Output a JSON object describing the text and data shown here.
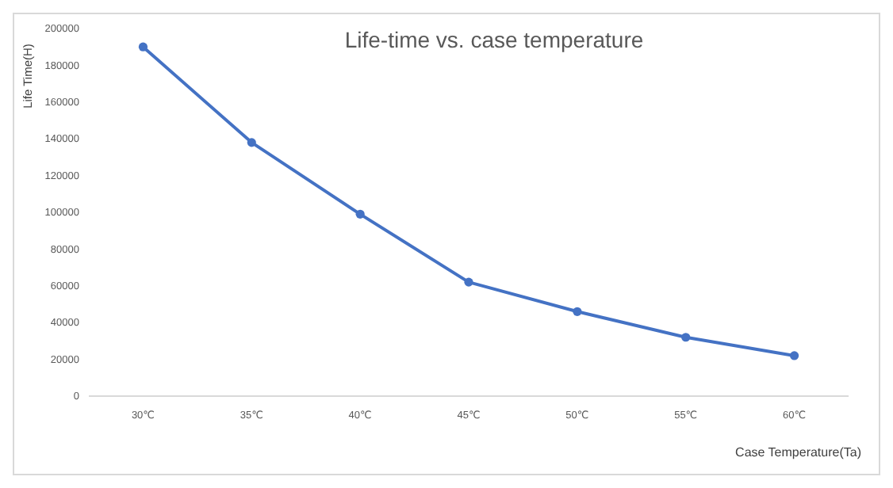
{
  "chart_data": {
    "type": "line",
    "title": "Life-time vs. case temperature",
    "xlabel": "Case Temperature(Ta)",
    "ylabel": "Life Time(H)",
    "categories": [
      "30℃",
      "35℃",
      "40℃",
      "45℃",
      "50℃",
      "55℃",
      "60℃"
    ],
    "series": [
      {
        "color": "#4472c4",
        "values": [
          190000,
          138000,
          99000,
          62000,
          46000,
          32000,
          22000
        ]
      }
    ],
    "ylim": [
      0,
      200000
    ],
    "yticks": [
      0,
      20000,
      40000,
      60000,
      80000,
      100000,
      120000,
      140000,
      160000,
      180000,
      200000
    ],
    "grid": false,
    "marker": "circle",
    "line_style": "solid"
  }
}
